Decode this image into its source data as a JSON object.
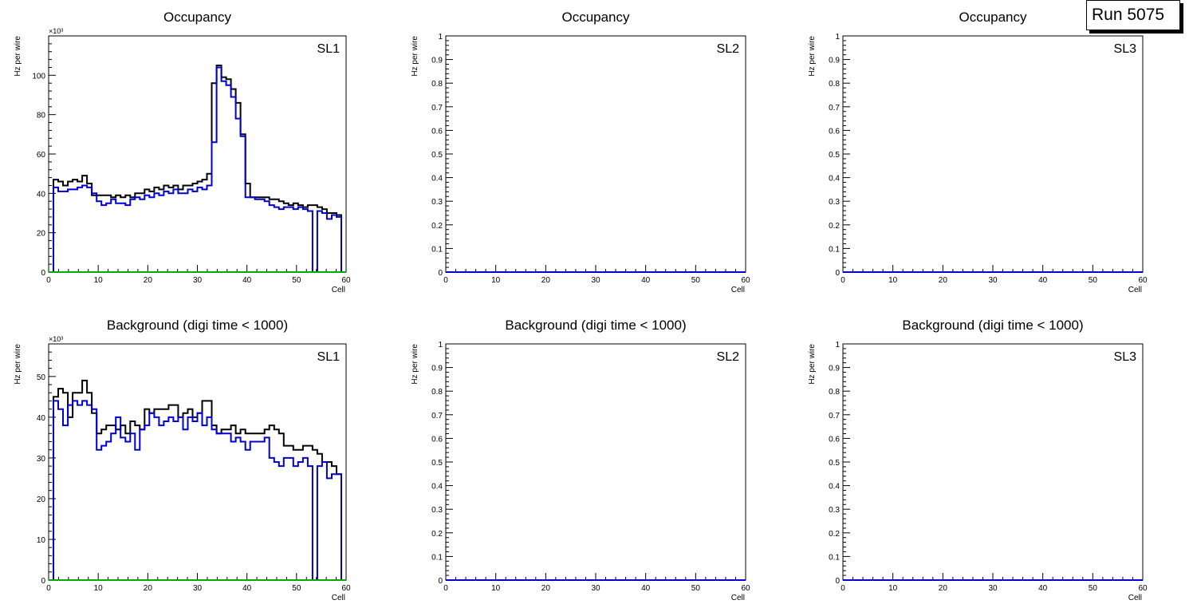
{
  "run_label": "Run 5075",
  "colors": {
    "total": "#000000",
    "blue": "#0000cc",
    "green": "#00aa00"
  },
  "chart_data": [
    {
      "type": "step-histogram",
      "title": "Occupancy",
      "label": "SL1",
      "xlabel": "Cell",
      "ylabel": "Hz per wire",
      "multiplier": "×10³",
      "xlim": [
        0,
        60
      ],
      "ylim": [
        0,
        120
      ],
      "xticks": [
        0,
        10,
        20,
        30,
        40,
        50,
        60
      ],
      "yticks": [
        0,
        20,
        40,
        60,
        80,
        100
      ],
      "series": [
        {
          "name": "total",
          "color": "black",
          "values": [
            0,
            47,
            46,
            44,
            46,
            47,
            46,
            49,
            45,
            39,
            39,
            39,
            39,
            38,
            39,
            38,
            39,
            38,
            40,
            40,
            42,
            41,
            43,
            42,
            44,
            43,
            44,
            42,
            44,
            44,
            45,
            46,
            47,
            50,
            96,
            105,
            99,
            98,
            93,
            86,
            70,
            45,
            38,
            38,
            38,
            38,
            37,
            37,
            36,
            35,
            34,
            35,
            34,
            33,
            34,
            34,
            33,
            32,
            30,
            30,
            29,
            0
          ]
        },
        {
          "name": "blue",
          "color": "blue",
          "values": [
            0,
            43,
            41,
            41,
            42,
            42,
            43,
            44,
            43,
            40,
            36,
            34,
            35,
            37,
            35,
            35,
            34,
            37,
            38,
            37,
            39,
            38,
            40,
            39,
            41,
            40,
            42,
            40,
            40,
            42,
            41,
            43,
            42,
            44,
            66,
            104,
            97,
            95,
            89,
            78,
            69,
            38,
            38,
            37,
            37,
            36,
            34,
            33,
            32,
            33,
            33,
            32,
            33,
            32,
            31,
            0,
            31,
            30,
            27,
            29,
            28,
            0
          ]
        },
        {
          "name": "green",
          "color": "green",
          "values": [
            0,
            0,
            0,
            0,
            0,
            0,
            0,
            0,
            0,
            0,
            0,
            0,
            0,
            0,
            0,
            0,
            0,
            0,
            0,
            0,
            0,
            0,
            0,
            0,
            0,
            0,
            0,
            0,
            0,
            0,
            0,
            0,
            0,
            0,
            0,
            0,
            0,
            0,
            0,
            0,
            0,
            0,
            0,
            0,
            0,
            0,
            0,
            0,
            0,
            0,
            0,
            0,
            0,
            0,
            0,
            0,
            0,
            0,
            0,
            0,
            0,
            0
          ]
        }
      ]
    },
    {
      "type": "step-histogram",
      "title": "Occupancy",
      "label": "SL2",
      "xlabel": "Cell",
      "ylabel": "Hz per wire",
      "multiplier": "",
      "xlim": [
        0,
        60
      ],
      "ylim": [
        0,
        1
      ],
      "xticks": [
        0,
        10,
        20,
        30,
        40,
        50,
        60
      ],
      "yticks": [
        0,
        0.1,
        0.2,
        0.3,
        0.4,
        0.5,
        0.6,
        0.7,
        0.8,
        0.9,
        1
      ],
      "series": [
        {
          "name": "blue",
          "color": "blue",
          "values": [
            0,
            0,
            0,
            0,
            0,
            0,
            0,
            0,
            0,
            0,
            0,
            0,
            0,
            0,
            0,
            0,
            0,
            0,
            0,
            0,
            0,
            0,
            0,
            0,
            0,
            0,
            0,
            0,
            0,
            0,
            0,
            0,
            0,
            0,
            0,
            0,
            0,
            0,
            0,
            0,
            0,
            0,
            0,
            0,
            0,
            0,
            0,
            0,
            0,
            0,
            0,
            0,
            0,
            0,
            0,
            0,
            0,
            0,
            0,
            0,
            0
          ]
        }
      ]
    },
    {
      "type": "step-histogram",
      "title": "Occupancy",
      "label": "SL3",
      "xlabel": "Cell",
      "ylabel": "Hz per wire",
      "multiplier": "",
      "xlim": [
        0,
        60
      ],
      "ylim": [
        0,
        1
      ],
      "xticks": [
        0,
        10,
        20,
        30,
        40,
        50,
        60
      ],
      "yticks": [
        0,
        0.1,
        0.2,
        0.3,
        0.4,
        0.5,
        0.6,
        0.7,
        0.8,
        0.9,
        1
      ],
      "series": [
        {
          "name": "blue",
          "color": "blue",
          "values": [
            0,
            0,
            0,
            0,
            0,
            0,
            0,
            0,
            0,
            0,
            0,
            0,
            0,
            0,
            0,
            0,
            0,
            0,
            0,
            0,
            0,
            0,
            0,
            0,
            0,
            0,
            0,
            0,
            0,
            0,
            0,
            0,
            0,
            0,
            0,
            0,
            0,
            0,
            0,
            0,
            0,
            0,
            0,
            0,
            0,
            0,
            0,
            0,
            0,
            0,
            0,
            0,
            0,
            0,
            0,
            0,
            0,
            0,
            0,
            0,
            0
          ]
        }
      ]
    },
    {
      "type": "step-histogram",
      "title": "Background (digi time < 1000)",
      "label": "SL1",
      "xlabel": "Cell",
      "ylabel": "Hz per wire",
      "multiplier": "×10³",
      "xlim": [
        0,
        60
      ],
      "ylim": [
        0,
        58
      ],
      "xticks": [
        0,
        10,
        20,
        30,
        40,
        50,
        60
      ],
      "yticks": [
        0,
        10,
        20,
        30,
        40,
        50
      ],
      "series": [
        {
          "name": "total",
          "color": "black",
          "values": [
            0,
            45,
            47,
            46,
            40,
            46,
            46,
            49,
            46,
            41,
            36,
            37,
            38,
            38,
            37,
            38,
            36,
            39,
            38,
            37,
            42,
            41,
            42,
            42,
            42,
            43,
            43,
            40,
            41,
            42,
            40,
            41,
            44,
            44,
            38,
            36,
            37,
            37,
            38,
            36,
            37,
            36,
            36,
            36,
            36,
            37,
            38,
            37,
            36,
            33,
            33,
            32,
            32,
            33,
            33,
            32,
            31,
            29,
            29,
            28,
            26,
            0
          ]
        },
        {
          "name": "blue",
          "color": "blue",
          "values": [
            0,
            44,
            42,
            38,
            43,
            44,
            43,
            44,
            43,
            42,
            32,
            33,
            34,
            36,
            40,
            35,
            34,
            36,
            32,
            37,
            38,
            41,
            40,
            38,
            39,
            40,
            39,
            40,
            37,
            40,
            39,
            41,
            38,
            40,
            37,
            36,
            36,
            36,
            34,
            35,
            34,
            32,
            34,
            34,
            34,
            35,
            30,
            29,
            28,
            30,
            30,
            28,
            29,
            30,
            28,
            0,
            28,
            29,
            25,
            26,
            26,
            0
          ]
        },
        {
          "name": "green",
          "color": "green",
          "values": [
            0,
            0,
            0,
            0,
            0,
            0,
            0,
            0,
            0,
            0,
            0,
            0,
            0,
            0,
            0,
            0,
            0,
            0,
            0,
            0,
            0,
            0,
            0,
            0,
            0,
            0,
            0,
            0,
            0,
            0,
            0,
            0,
            0,
            0,
            0,
            0,
            0,
            0,
            0,
            0,
            0,
            0,
            0,
            0,
            0,
            0,
            0,
            0,
            0,
            0,
            0,
            0,
            0,
            0,
            0,
            0,
            0,
            0,
            0,
            0,
            0,
            0
          ]
        }
      ]
    },
    {
      "type": "step-histogram",
      "title": "Background (digi time < 1000)",
      "label": "SL2",
      "xlabel": "Cell",
      "ylabel": "Hz per wire",
      "multiplier": "",
      "xlim": [
        0,
        60
      ],
      "ylim": [
        0,
        1
      ],
      "xticks": [
        0,
        10,
        20,
        30,
        40,
        50,
        60
      ],
      "yticks": [
        0,
        0.1,
        0.2,
        0.3,
        0.4,
        0.5,
        0.6,
        0.7,
        0.8,
        0.9,
        1
      ],
      "series": [
        {
          "name": "blue",
          "color": "blue",
          "values": [
            0,
            0,
            0,
            0,
            0,
            0,
            0,
            0,
            0,
            0,
            0,
            0,
            0,
            0,
            0,
            0,
            0,
            0,
            0,
            0,
            0,
            0,
            0,
            0,
            0,
            0,
            0,
            0,
            0,
            0,
            0,
            0,
            0,
            0,
            0,
            0,
            0,
            0,
            0,
            0,
            0,
            0,
            0,
            0,
            0,
            0,
            0,
            0,
            0,
            0,
            0,
            0,
            0,
            0,
            0,
            0,
            0,
            0,
            0,
            0,
            0
          ]
        }
      ]
    },
    {
      "type": "step-histogram",
      "title": "Background (digi time < 1000)",
      "label": "SL3",
      "xlabel": "Cell",
      "ylabel": "Hz per wire",
      "multiplier": "",
      "xlim": [
        0,
        60
      ],
      "ylim": [
        0,
        1
      ],
      "xticks": [
        0,
        10,
        20,
        30,
        40,
        50,
        60
      ],
      "yticks": [
        0,
        0.1,
        0.2,
        0.3,
        0.4,
        0.5,
        0.6,
        0.7,
        0.8,
        0.9,
        1
      ],
      "series": [
        {
          "name": "blue",
          "color": "blue",
          "values": [
            0,
            0,
            0,
            0,
            0,
            0,
            0,
            0,
            0,
            0,
            0,
            0,
            0,
            0,
            0,
            0,
            0,
            0,
            0,
            0,
            0,
            0,
            0,
            0,
            0,
            0,
            0,
            0,
            0,
            0,
            0,
            0,
            0,
            0,
            0,
            0,
            0,
            0,
            0,
            0,
            0,
            0,
            0,
            0,
            0,
            0,
            0,
            0,
            0,
            0,
            0,
            0,
            0,
            0,
            0,
            0,
            0,
            0,
            0,
            0,
            0
          ]
        }
      ]
    }
  ]
}
